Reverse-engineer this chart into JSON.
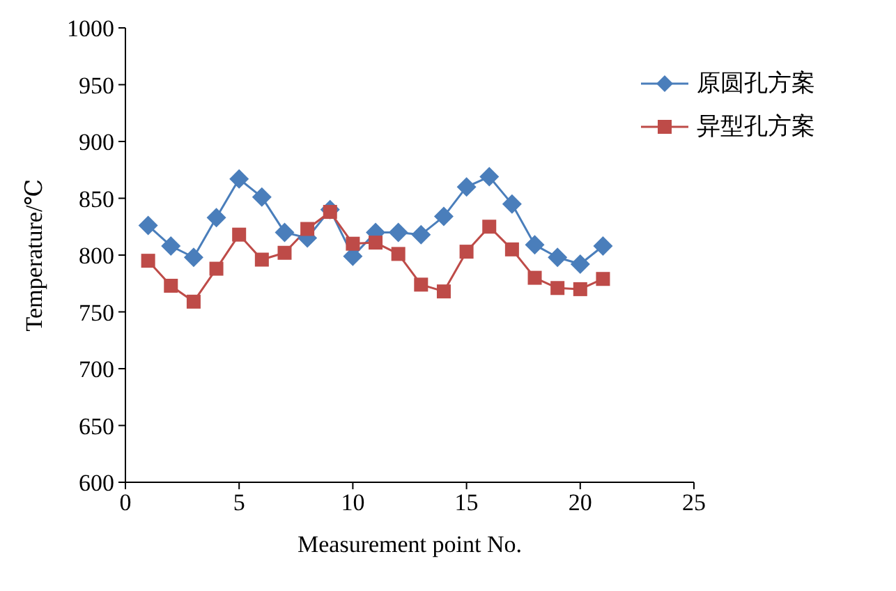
{
  "chart_data": {
    "type": "line",
    "xlabel": "Measurement point No.",
    "ylabel": "Temperature/℃",
    "x": [
      1,
      2,
      3,
      4,
      5,
      6,
      7,
      8,
      9,
      10,
      11,
      12,
      13,
      14,
      15,
      16,
      17,
      18,
      19,
      20,
      21
    ],
    "series": [
      {
        "name": "原圆孔方案",
        "color": "#4a7ebb",
        "marker": "diamond",
        "values": [
          826,
          808,
          798,
          833,
          867,
          851,
          820,
          815,
          840,
          799,
          820,
          820,
          818,
          834,
          860,
          869,
          845,
          809,
          798,
          792,
          808
        ]
      },
      {
        "name": "异型孔方案",
        "color": "#be4b48",
        "marker": "square",
        "values": [
          795,
          773,
          759,
          788,
          818,
          796,
          802,
          823,
          838,
          810,
          811,
          801,
          774,
          768,
          803,
          825,
          805,
          780,
          771,
          770,
          779
        ]
      }
    ],
    "xlim": [
      0,
      25
    ],
    "xticks": [
      0,
      5,
      10,
      15,
      20,
      25
    ],
    "ylim": [
      600,
      1000
    ],
    "yticks": [
      600,
      650,
      700,
      750,
      800,
      850,
      900,
      950,
      1000
    ],
    "grid": false,
    "legend": "top right",
    "line_style": "solid"
  }
}
